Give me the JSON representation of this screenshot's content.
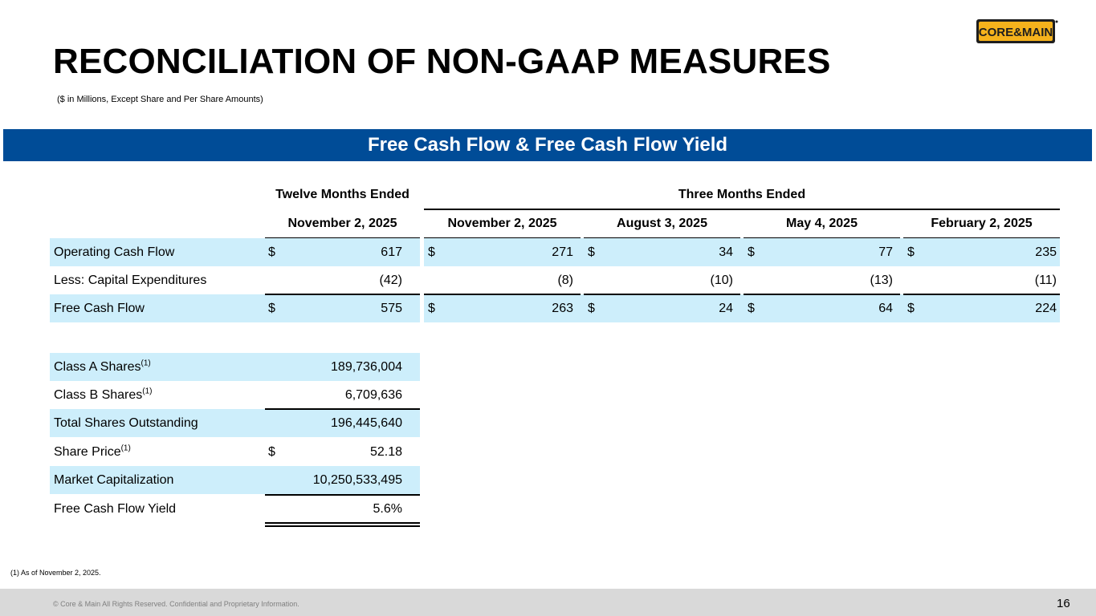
{
  "header": {
    "title": "RECONCILIATION OF NON-GAAP MEASURES",
    "subtitle": "($ in Millions, Except Share and Per Share Amounts)",
    "logo_text": "CORE&MAIN"
  },
  "banner": {
    "title": "Free Cash Flow & Free Cash Flow Yield"
  },
  "table": {
    "group_headers": [
      "Twelve Months Ended",
      "Three Months Ended"
    ],
    "columns": [
      "November 2, 2025",
      "November 2, 2025",
      "August 3, 2025",
      "May 4, 2025",
      "February 2, 2025"
    ],
    "rows": [
      {
        "label": "Operating Cash Flow",
        "dollar": [
          "$",
          "$",
          "$",
          "$",
          "$"
        ],
        "values": [
          "617",
          "271",
          "34",
          "77",
          "235"
        ]
      },
      {
        "label": "Less: Capital Expenditures",
        "dollar": [
          "",
          "",
          "",
          "",
          ""
        ],
        "values": [
          "(42)",
          "(8)",
          "(10)",
          "(13)",
          "(11)"
        ]
      },
      {
        "label": "Free Cash Flow",
        "dollar": [
          "$",
          "$",
          "$",
          "$",
          "$"
        ],
        "values": [
          "575",
          "263",
          "24",
          "64",
          "224"
        ]
      }
    ]
  },
  "shares": {
    "rows": [
      {
        "label": "Class A Shares",
        "sup": "(1)",
        "dollar": "",
        "value": "189,736,004"
      },
      {
        "label": "Class B Shares",
        "sup": "(1)",
        "dollar": "",
        "value": "6,709,636"
      },
      {
        "label": "Total Shares Outstanding",
        "sup": "",
        "dollar": "",
        "value": "196,445,640"
      },
      {
        "label": "Share Price",
        "sup": "(1)",
        "dollar": "$",
        "value": "52.18"
      },
      {
        "label": "Market Capitalization",
        "sup": "",
        "dollar": "",
        "value": "10,250,533,495"
      },
      {
        "label": "Free Cash Flow Yield",
        "sup": "",
        "dollar": "",
        "value": "5.6%"
      }
    ]
  },
  "footnote": "(1) As of November 2, 2025.",
  "footer": {
    "copyright": "© Core & Main  All Rights Reserved. Confidential and Proprietary Information.",
    "page_number": "16"
  },
  "colors": {
    "banner": "#004c97",
    "row_highlight": "#cdeefb",
    "logo_yellow": "#f5b21c",
    "logo_dark": "#1e1e1e"
  }
}
